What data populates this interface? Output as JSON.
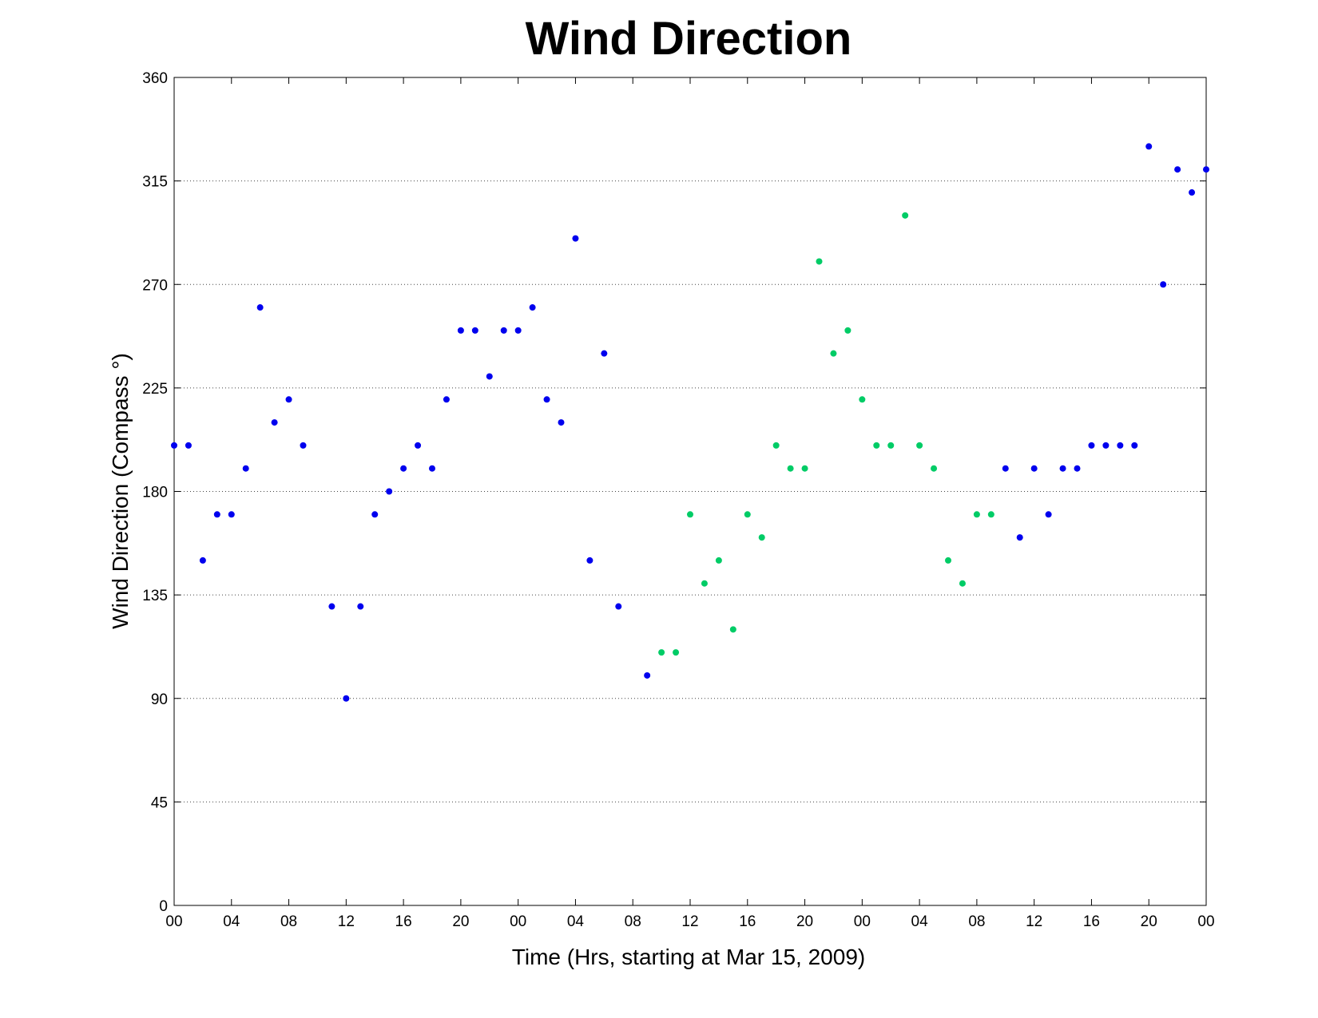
{
  "chart_data": {
    "type": "scatter",
    "title": "Wind Direction",
    "xlabel": "Time (Hrs, starting at Mar 15, 2009)",
    "ylabel": "Wind Direction (Compass °)",
    "xlim": [
      0,
      72
    ],
    "ylim": [
      0,
      360
    ],
    "xticks": [
      {
        "value": 0,
        "label": "00"
      },
      {
        "value": 4,
        "label": "04"
      },
      {
        "value": 8,
        "label": "08"
      },
      {
        "value": 12,
        "label": "12"
      },
      {
        "value": 16,
        "label": "16"
      },
      {
        "value": 20,
        "label": "20"
      },
      {
        "value": 24,
        "label": "00"
      },
      {
        "value": 28,
        "label": "04"
      },
      {
        "value": 32,
        "label": "08"
      },
      {
        "value": 36,
        "label": "12"
      },
      {
        "value": 40,
        "label": "16"
      },
      {
        "value": 44,
        "label": "20"
      },
      {
        "value": 48,
        "label": "00"
      },
      {
        "value": 52,
        "label": "04"
      },
      {
        "value": 56,
        "label": "08"
      },
      {
        "value": 60,
        "label": "12"
      },
      {
        "value": 64,
        "label": "16"
      },
      {
        "value": 68,
        "label": "20"
      },
      {
        "value": 72,
        "label": "00"
      }
    ],
    "yticks": [
      0,
      45,
      90,
      135,
      180,
      225,
      270,
      315,
      360
    ],
    "grid": true,
    "series": [
      {
        "color": "#0000ee",
        "x": [
          0,
          1,
          2,
          3,
          4,
          5,
          6,
          7,
          8,
          9,
          11,
          12,
          13,
          14,
          15,
          16,
          17,
          18,
          19,
          20,
          21,
          22,
          23,
          24,
          25,
          26,
          27,
          28,
          29,
          30,
          31,
          33,
          58,
          59,
          60,
          61,
          62,
          63,
          64,
          65,
          66,
          67,
          68,
          69,
          70,
          71,
          72
        ],
        "values": [
          200,
          200,
          150,
          170,
          170,
          190,
          260,
          210,
          220,
          200,
          130,
          90,
          130,
          170,
          180,
          190,
          200,
          190,
          220,
          250,
          250,
          230,
          250,
          250,
          260,
          220,
          210,
          290,
          150,
          240,
          130,
          100,
          190,
          160,
          190,
          170,
          190,
          190,
          200,
          200,
          200,
          200,
          330,
          270,
          320,
          310,
          320
        ]
      },
      {
        "color": "#00cc66",
        "x": [
          34,
          35,
          36,
          37,
          38,
          39,
          40,
          41,
          42,
          43,
          44,
          45,
          46,
          47,
          48,
          49,
          50,
          51,
          52,
          53,
          54,
          55,
          56,
          57
        ],
        "values": [
          110,
          110,
          170,
          140,
          150,
          120,
          170,
          160,
          200,
          190,
          190,
          280,
          240,
          250,
          220,
          200,
          200,
          300,
          200,
          190,
          150,
          140,
          170,
          170
        ]
      }
    ]
  }
}
